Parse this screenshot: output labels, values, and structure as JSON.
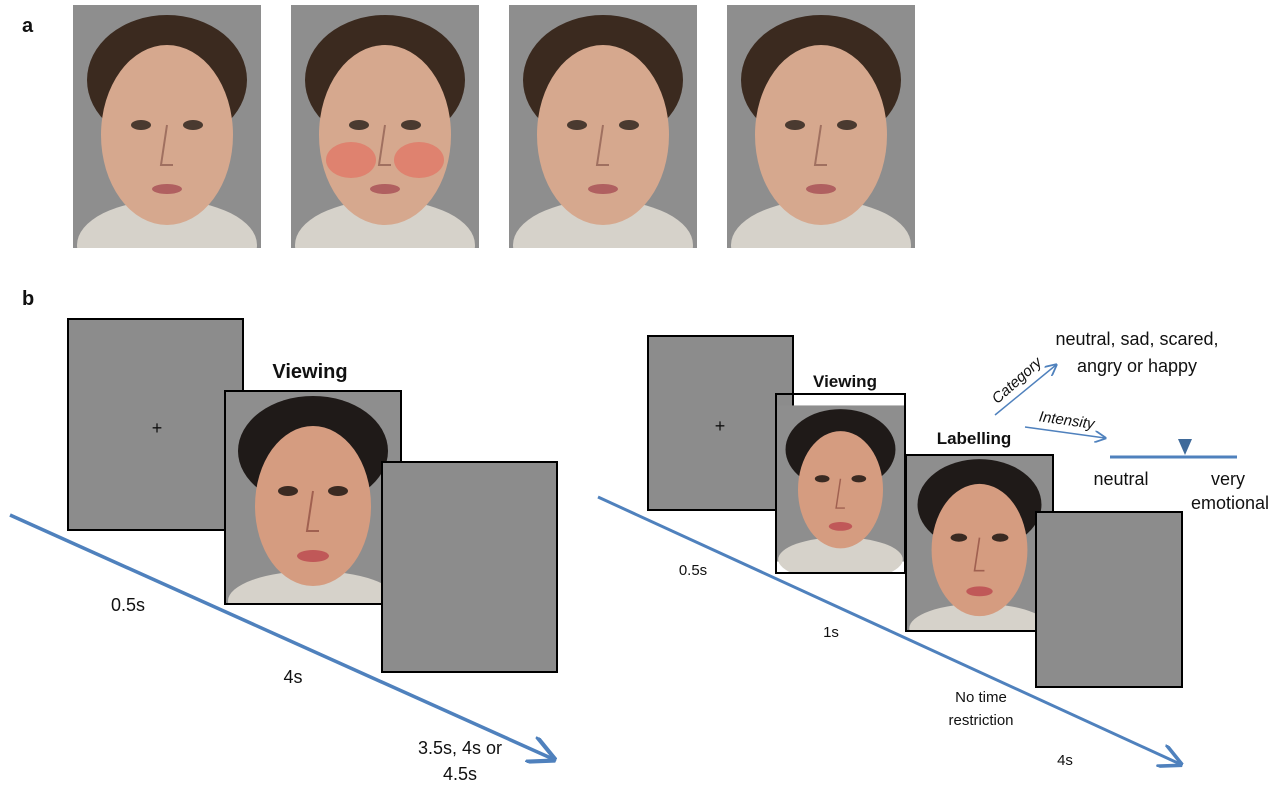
{
  "panel_a": {
    "label": "a"
  },
  "panel_b": {
    "label": "b",
    "left": {
      "fixation": "+",
      "viewing": "Viewing",
      "durations": [
        {
          "lines": [
            "0.5s"
          ]
        },
        {
          "lines": [
            "4s"
          ]
        },
        {
          "lines": [
            "3.5s, 4s or",
            "4.5s"
          ]
        }
      ]
    },
    "right": {
      "fixation": "+",
      "viewing": "Viewing",
      "labelling": "Labelling",
      "category_arrow": "Category",
      "intensity_arrow": "Intensity",
      "category_options": {
        "lines": [
          "neutral, sad, scared,",
          "angry or happy"
        ]
      },
      "scale_low": {
        "lines": [
          "neutral"
        ]
      },
      "scale_high": {
        "lines": [
          "very",
          "emotional"
        ]
      },
      "durations": [
        {
          "lines": [
            "0.5s"
          ]
        },
        {
          "lines": [
            "1s"
          ]
        },
        {
          "lines": [
            "No time",
            "restriction"
          ]
        },
        {
          "lines": [
            "4s"
          ]
        }
      ]
    }
  }
}
